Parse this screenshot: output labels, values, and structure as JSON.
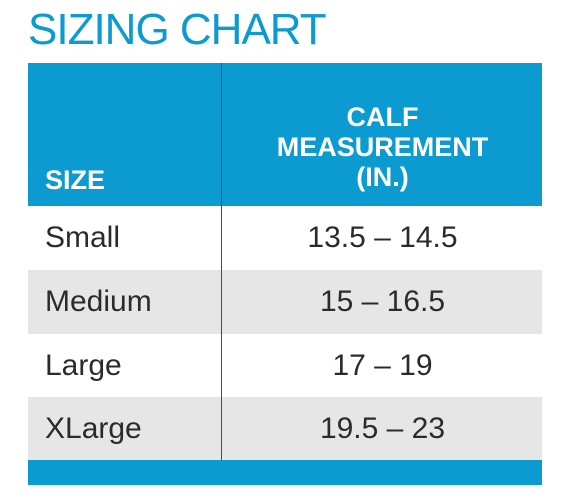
{
  "title": "SIZING CHART",
  "table": {
    "headers": {
      "size": "SIZE",
      "calf": "CALF\nMEASUREMENT\n(IN.)"
    },
    "rows": [
      {
        "size": "Small",
        "calf": "13.5 – 14.5"
      },
      {
        "size": "Medium",
        "calf": "15 – 16.5"
      },
      {
        "size": "Large",
        "calf": "17 – 19"
      },
      {
        "size": "XLarge",
        "calf": "19.5 – 23"
      }
    ]
  },
  "colors": {
    "accent": "#0b9bd0",
    "row_shade": "#e6e6e7",
    "text": "#2b2b2b"
  }
}
